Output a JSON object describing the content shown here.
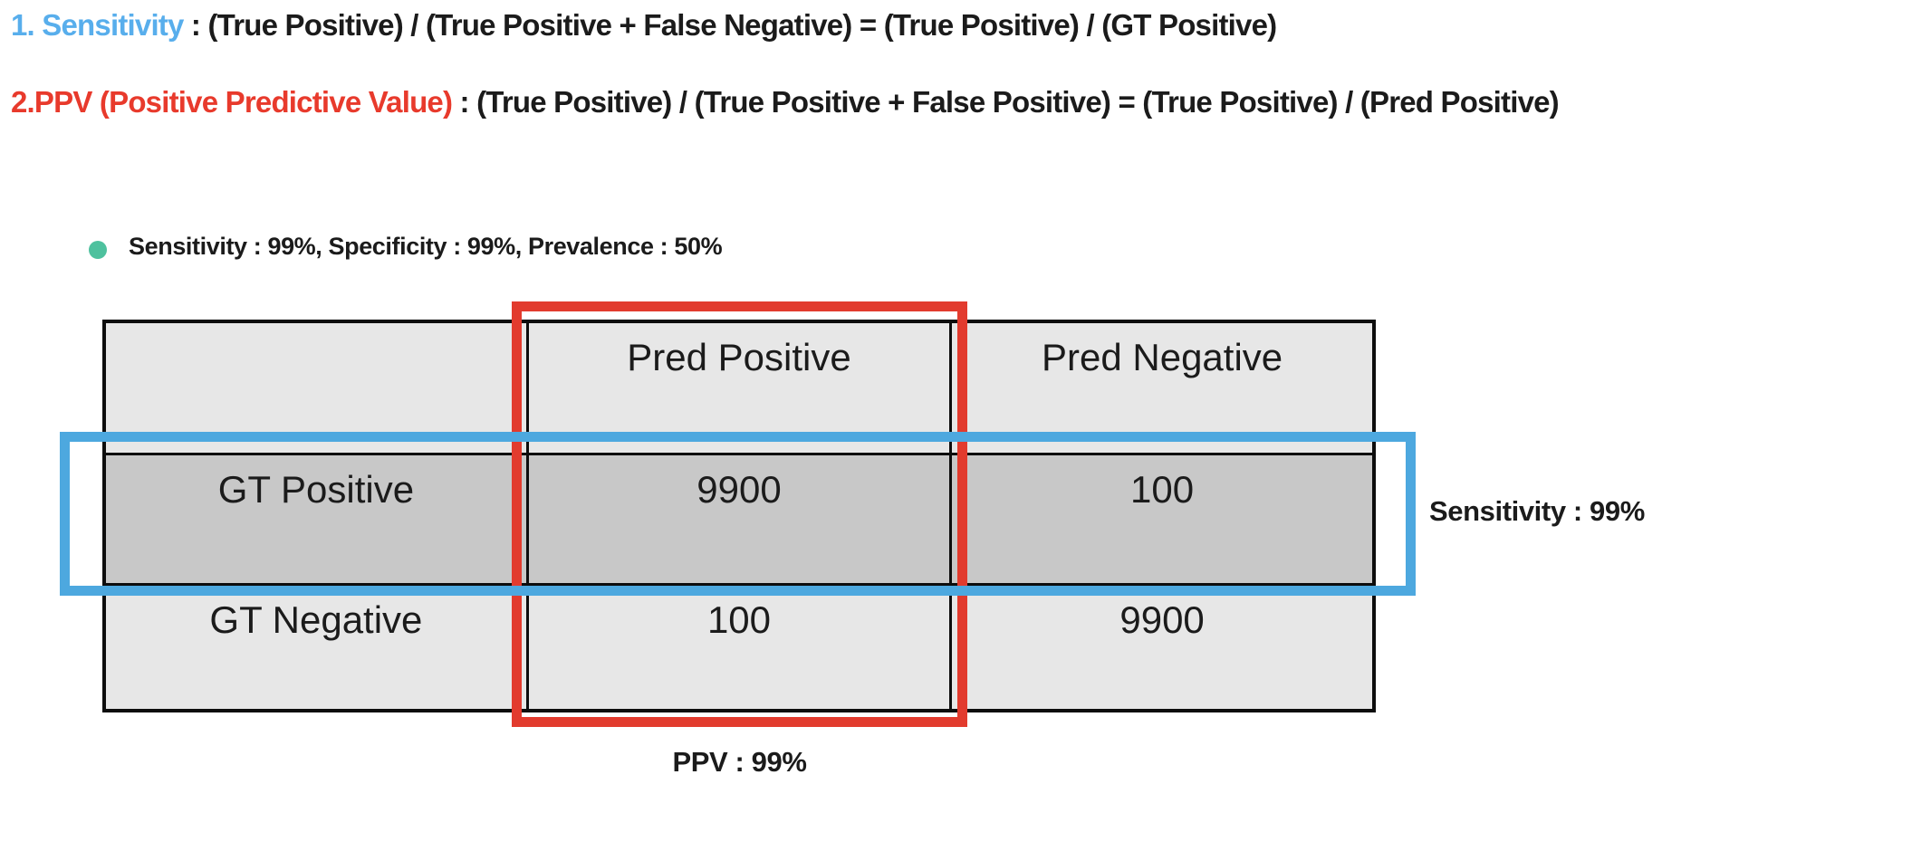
{
  "formulas": [
    {
      "label": "1. Sensitivity",
      "label_color": "#58AEEC",
      "body": " : (True Positive) / (True Positive + False Negative) = (True Positive) / (GT Positive)"
    },
    {
      "label": "2.PPV (Positive Predictive Value)",
      "label_color": "#E83A2C",
      "body": " : (True Positive) / (True Positive + False Positive) = (True Positive) / (Pred Positive)"
    }
  ],
  "bullet": {
    "dot_color": "#4EC19E",
    "text": "Sensitivity : 99%, Specificity : 99%, Prevalence : 50%"
  },
  "matrix": {
    "corner": "",
    "col_headers": [
      "Pred Positive",
      "Pred Negative"
    ],
    "rows": [
      {
        "header": "GT Positive",
        "values": [
          "9900",
          "100"
        ]
      },
      {
        "header": "GT Negative",
        "values": [
          "100",
          "9900"
        ]
      }
    ],
    "light_cell_color": "#E7E7E7",
    "dark_cell_color": "#C8C8C8"
  },
  "highlights": {
    "red_box_color": "#E23B2E",
    "blue_box_color": "#4DA8DF",
    "sensitivity_label": "Sensitivity : 99%",
    "ppv_label": "PPV : 99%"
  }
}
